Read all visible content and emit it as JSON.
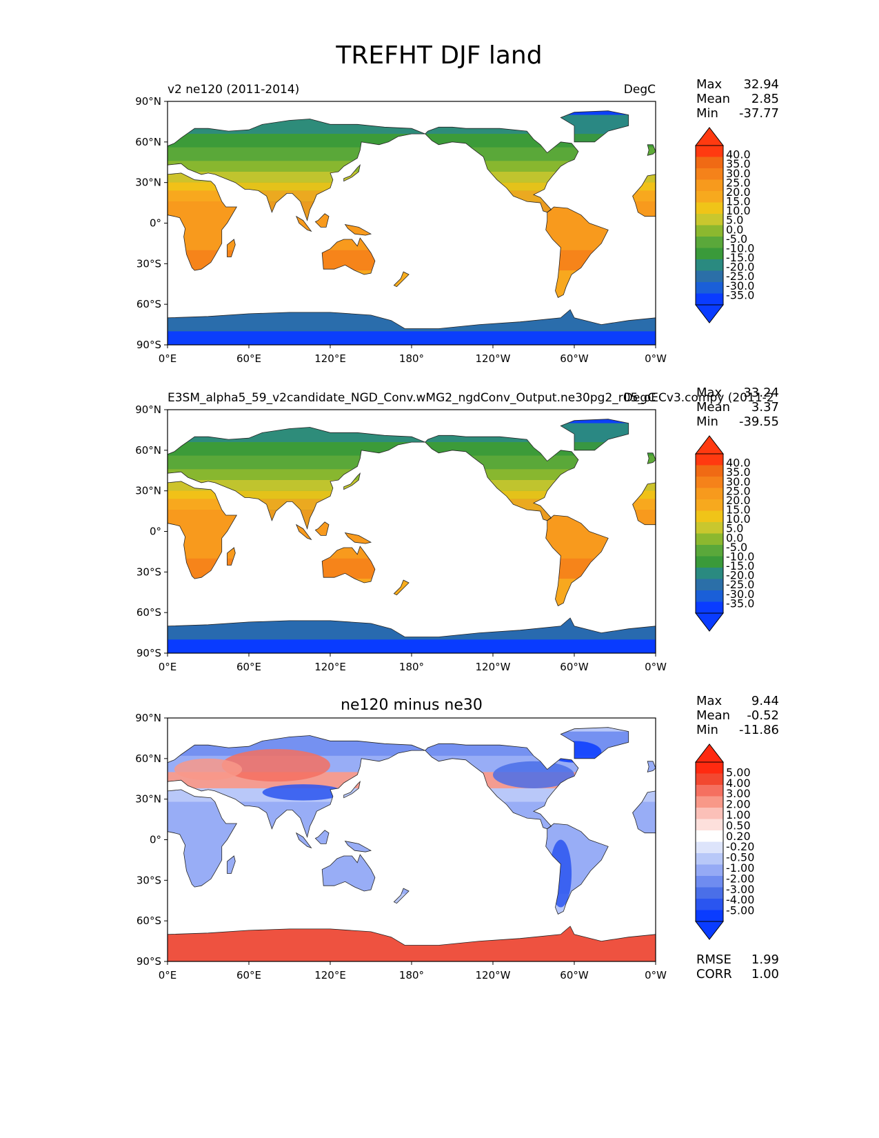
{
  "figure_title": "TREFHT DJF land",
  "colors": {
    "ocean": "#ffffff",
    "coast": "#222222",
    "temp_ramp": [
      "#0a3cff",
      "#1a5fd8",
      "#2b6fa8",
      "#2a8a80",
      "#3a9a3a",
      "#5aa83a",
      "#8cb82f",
      "#c9c72e",
      "#f0c418",
      "#f7a91e",
      "#f79a1d",
      "#f5821a",
      "#f06a14",
      "#ff3a10"
    ],
    "diff_ramp": [
      "#0a3cff",
      "#2a55f0",
      "#4a6fe8",
      "#6f8cf0",
      "#95aaf5",
      "#b8c8f8",
      "#dde4fb",
      "#ffffff",
      "#fde0dc",
      "#fbc0b8",
      "#f89888",
      "#f57060",
      "#f24830",
      "#ff2a10"
    ]
  },
  "chart_data": [
    {
      "type": "heatmap",
      "title": "v2 ne120 (2011-2014)",
      "units": "DegC",
      "stats": [
        {
          "label": "Max",
          "value": "32.94"
        },
        {
          "label": "Mean",
          "value": "2.85"
        },
        {
          "label": "Min",
          "value": "-37.77"
        }
      ],
      "x_ticks": [
        "0°E",
        "60°E",
        "120°E",
        "180°",
        "120°W",
        "60°W",
        "0°W"
      ],
      "y_ticks": [
        "90°N",
        "60°N",
        "30°N",
        "0°",
        "30°S",
        "60°S",
        "90°S"
      ],
      "xlim": [
        0,
        360
      ],
      "ylim": [
        -90,
        90
      ],
      "colorbar": {
        "levels": [
          "40.0",
          "35.0",
          "30.0",
          "25.0",
          "20.0",
          "15.0",
          "10.0",
          "5.0",
          "0.0",
          "-5.0",
          "-10.0",
          "-15.0",
          "-20.0",
          "-25.0",
          "-30.0",
          "-35.0"
        ],
        "ramp": "temp_ramp"
      }
    },
    {
      "type": "heatmap",
      "title": "E3SM_alpha5_59_v2candidate_NGD_Conv.wMG2_ngdConv_Output.ne30pg2_r05_oECv3.compy (2011-2",
      "units": "DegC",
      "stats": [
        {
          "label": "Max",
          "value": "33.24"
        },
        {
          "label": "Mean",
          "value": "3.37"
        },
        {
          "label": "Min",
          "value": "-39.55"
        }
      ],
      "x_ticks": [
        "0°E",
        "60°E",
        "120°E",
        "180°",
        "120°W",
        "60°W",
        "0°W"
      ],
      "y_ticks": [
        "90°N",
        "60°N",
        "30°N",
        "0°",
        "30°S",
        "60°S",
        "90°S"
      ],
      "xlim": [
        0,
        360
      ],
      "ylim": [
        -90,
        90
      ],
      "colorbar": {
        "levels": [
          "40.0",
          "35.0",
          "30.0",
          "25.0",
          "20.0",
          "15.0",
          "10.0",
          "5.0",
          "0.0",
          "-5.0",
          "-10.0",
          "-15.0",
          "-20.0",
          "-25.0",
          "-30.0",
          "-35.0"
        ],
        "ramp": "temp_ramp"
      }
    },
    {
      "type": "heatmap",
      "title": "ne120 minus ne30",
      "units": "",
      "stats": [
        {
          "label": "Max",
          "value": "9.44"
        },
        {
          "label": "Mean",
          "value": "-0.52"
        },
        {
          "label": "Min",
          "value": "-11.86"
        }
      ],
      "extra_stats": [
        {
          "label": "RMSE",
          "value": "1.99"
        },
        {
          "label": "CORR",
          "value": "1.00"
        }
      ],
      "x_ticks": [
        "0°E",
        "60°E",
        "120°E",
        "180°",
        "120°W",
        "60°W",
        "0°W"
      ],
      "y_ticks": [
        "90°N",
        "60°N",
        "30°N",
        "0°",
        "30°S",
        "60°S",
        "90°S"
      ],
      "xlim": [
        0,
        360
      ],
      "ylim": [
        -90,
        90
      ],
      "colorbar": {
        "levels": [
          "5.00",
          "4.00",
          "3.00",
          "2.00",
          "1.00",
          "0.50",
          "0.20",
          "-0.20",
          "-0.50",
          "-1.00",
          "-2.00",
          "-3.00",
          "-4.00",
          "-5.00"
        ],
        "ramp": "diff_ramp"
      }
    }
  ]
}
